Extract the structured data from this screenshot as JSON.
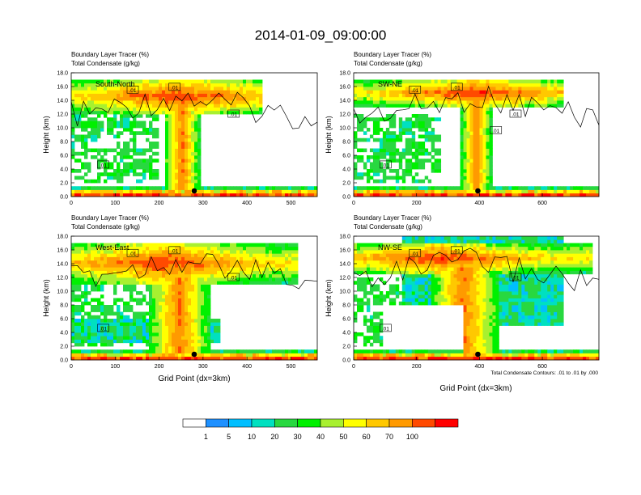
{
  "figure": {
    "title": "2014-01-09_09:00:00",
    "bottom_xlabel": "Grid Point (dx=3km)",
    "contour_note": "Total Condensate Contours: .01 to .01 by .000"
  },
  "colorbar": {
    "labels": [
      "1",
      "5",
      "10",
      "20",
      "30",
      "40",
      "50",
      "60",
      "70",
      "100"
    ],
    "colors": [
      "#ffffff",
      "#1e90ff",
      "#00bfff",
      "#00e0c0",
      "#28d840",
      "#00f000",
      "#a8f030",
      "#ffff00",
      "#ffc800",
      "#ff9a00",
      "#ff4a00",
      "#ff0000"
    ]
  },
  "chart_data": [
    {
      "type": "heatmap",
      "title_line1": "Boundary Layer Tracer   (%)",
      "title_line2": "Total Condensate   (g/kg)",
      "panel_label": "South-North",
      "ylabel": "Height (km)",
      "xlabel": "",
      "xlim": [
        0,
        560
      ],
      "ylim": [
        0,
        18
      ],
      "xticks": [
        "0",
        "100",
        "200",
        "300",
        "400",
        "500"
      ],
      "yticks": [
        "0.0",
        "2.0",
        "4.0",
        "6.0",
        "8.0",
        "10.0",
        "12.0",
        "14.0",
        "16.0",
        "18.0"
      ],
      "marker_x": 280,
      "contour_labels": [
        ".01",
        ".01",
        ".01",
        ".01"
      ]
    },
    {
      "type": "heatmap",
      "title_line1": "Boundary Layer Tracer   (%)",
      "title_line2": "Total Condensate   (g/kg)",
      "panel_label": "SW-NE",
      "ylabel": "Height (km)",
      "xlabel": "",
      "xlim": [
        0,
        780
      ],
      "ylim": [
        0,
        18
      ],
      "xticks": [
        "0",
        "200",
        "400",
        "600"
      ],
      "yticks": [
        "0.0",
        "2.0",
        "4.0",
        "6.0",
        "8.0",
        "10.0",
        "12.0",
        "14.0",
        "16.0",
        "18.0"
      ],
      "marker_x": 395,
      "contour_labels": [
        ".01",
        ".01",
        ".01",
        ".01",
        ".01"
      ]
    },
    {
      "type": "heatmap",
      "title_line1": "Boundary Layer Tracer   (%)",
      "title_line2": "Total Condensate   (g/kg)",
      "panel_label": "West-East",
      "ylabel": "Height (km)",
      "xlabel": "Grid Point (dx=3km)",
      "xlim": [
        0,
        560
      ],
      "ylim": [
        0,
        18
      ],
      "xticks": [
        "0",
        "100",
        "200",
        "300",
        "400",
        "500"
      ],
      "yticks": [
        "0.0",
        "2.0",
        "4.0",
        "6.0",
        "8.0",
        "10.0",
        "12.0",
        "14.0",
        "16.0",
        "18.0"
      ],
      "marker_x": 280,
      "contour_labels": [
        ".01",
        ".01",
        ".01",
        ".01"
      ]
    },
    {
      "type": "heatmap",
      "title_line1": "Boundary Layer Tracer   (%)",
      "title_line2": "Total Condensate   (g/kg)",
      "panel_label": "NW-SE",
      "ylabel": "Height (km)",
      "xlabel": "",
      "xlim": [
        0,
        780
      ],
      "ylim": [
        0,
        18
      ],
      "xticks": [
        "0",
        "200",
        "400",
        "600"
      ],
      "yticks": [
        "0.0",
        "2.0",
        "4.0",
        "6.0",
        "8.0",
        "10.0",
        "12.0",
        "14.0",
        "16.0",
        "18.0"
      ],
      "marker_x": 395,
      "contour_labels": [
        ".01",
        ".01",
        ".01",
        ".01"
      ]
    }
  ]
}
